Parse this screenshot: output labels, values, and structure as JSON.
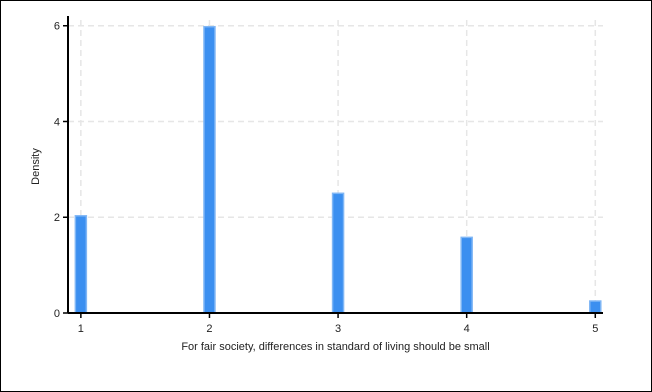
{
  "chart_data": {
    "type": "bar",
    "title": "",
    "xlabel": "For fair society, differences in standard of living should be small",
    "ylabel": "Density",
    "x": [
      1,
      2,
      3,
      4,
      5
    ],
    "values": [
      2.03,
      5.98,
      2.5,
      1.58,
      0.25
    ],
    "xlim": [
      0.9,
      5.06
    ],
    "ylim": [
      0,
      6.12
    ],
    "xticks": [
      1,
      2,
      3,
      4,
      5
    ],
    "yticks": [
      0,
      2,
      4,
      6
    ],
    "grid": true,
    "legend": "none",
    "bar_color": "#3b8ff0",
    "bar_edge_color": "#7fb6f5"
  }
}
